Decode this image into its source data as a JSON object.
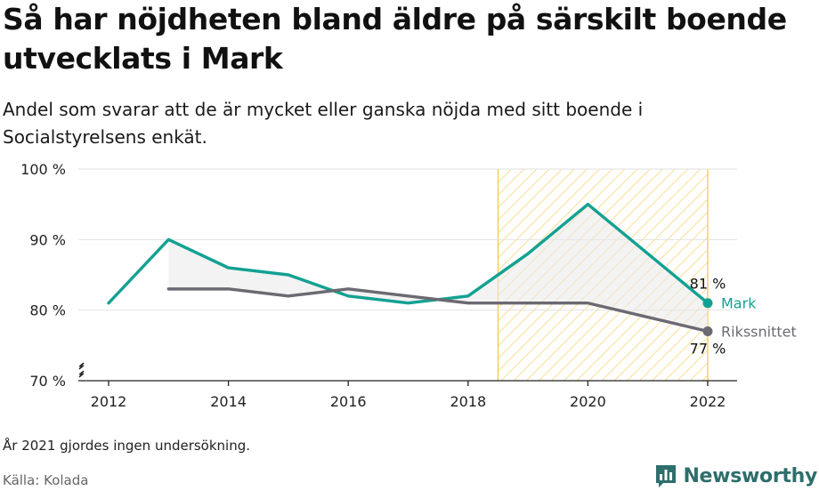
{
  "header": {
    "title": "Så har nöjdheten bland äldre på särskilt boende utvecklats i Mark",
    "subtitle": "Andel som svarar att de är mycket eller ganska nöjda med sitt boende i Socialstyrelsens enkät."
  },
  "footer": {
    "note": "År 2021 gjordes ingen undersökning.",
    "source": "Källa: Kolada",
    "brand": "Newsworthy",
    "brand_icon": "bar-chart-icon"
  },
  "chart_data": {
    "type": "line",
    "x_ticks": [
      "2012",
      "2014",
      "2016",
      "2018",
      "2020",
      "2022"
    ],
    "y_ticks": [
      "70 %",
      "80 %",
      "90 %",
      "100 %"
    ],
    "ylim": [
      70,
      100
    ],
    "xlim": [
      2011.7,
      2022.5
    ],
    "grid": true,
    "axis_break": true,
    "highlight_range": [
      2018.5,
      2022
    ],
    "highlight_color": "#f5c542",
    "series": [
      {
        "name": "Mark",
        "color": "#12a192",
        "end_label": "81 %",
        "points": [
          [
            2012,
            81
          ],
          [
            2013,
            90
          ],
          [
            2014,
            86
          ],
          [
            2015,
            85
          ],
          [
            2016,
            82
          ],
          [
            2017,
            81
          ],
          [
            2018,
            82
          ],
          [
            2019,
            88
          ],
          [
            2020,
            95
          ],
          [
            2022,
            81
          ]
        ]
      },
      {
        "name": "Rikssnittet",
        "color": "#6b6971",
        "end_label": "77 %",
        "points": [
          [
            2013,
            83
          ],
          [
            2014,
            83
          ],
          [
            2015,
            82
          ],
          [
            2016,
            83
          ],
          [
            2017,
            82
          ],
          [
            2018,
            81
          ],
          [
            2019,
            81
          ],
          [
            2020,
            81
          ],
          [
            2022,
            77
          ]
        ]
      }
    ]
  }
}
